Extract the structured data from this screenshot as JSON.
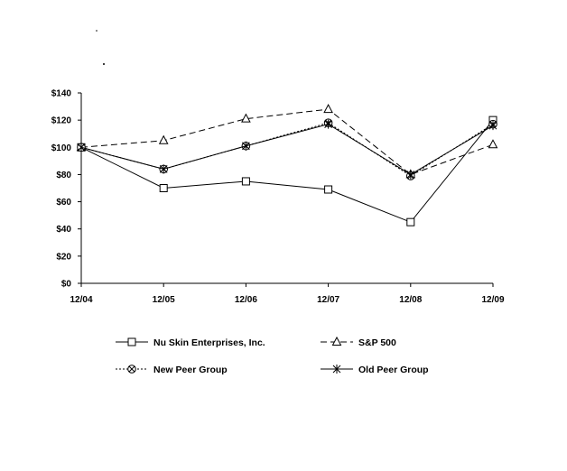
{
  "chart_data": {
    "type": "line",
    "title": "",
    "xlabel": "",
    "ylabel": "",
    "categories": [
      "12/04",
      "12/05",
      "12/06",
      "12/07",
      "12/08",
      "12/09"
    ],
    "ylim": [
      0,
      140
    ],
    "yticks": [
      0,
      20,
      40,
      60,
      80,
      100,
      120,
      140
    ],
    "ytick_labels": [
      "$0",
      "$20",
      "$40",
      "$60",
      "$80",
      "$100",
      "$120",
      "$140"
    ],
    "grid": false,
    "legend_position": "bottom",
    "series": [
      {
        "name": "Nu Skin Enterprises, Inc.",
        "values": [
          100,
          70,
          75,
          69,
          45,
          120
        ],
        "marker": "square",
        "line": "solid"
      },
      {
        "name": "S&P 500",
        "values": [
          100,
          105,
          121,
          128,
          80,
          102
        ],
        "marker": "triangle",
        "line": "dashed"
      },
      {
        "name": "New Peer Group",
        "values": [
          100,
          84,
          101,
          118,
          79,
          117
        ],
        "marker": "circle-cross",
        "line": "dotted"
      },
      {
        "name": "Old Peer Group",
        "values": [
          100,
          84,
          101,
          117,
          80,
          116
        ],
        "marker": "asterisk",
        "line": "solid"
      }
    ]
  }
}
